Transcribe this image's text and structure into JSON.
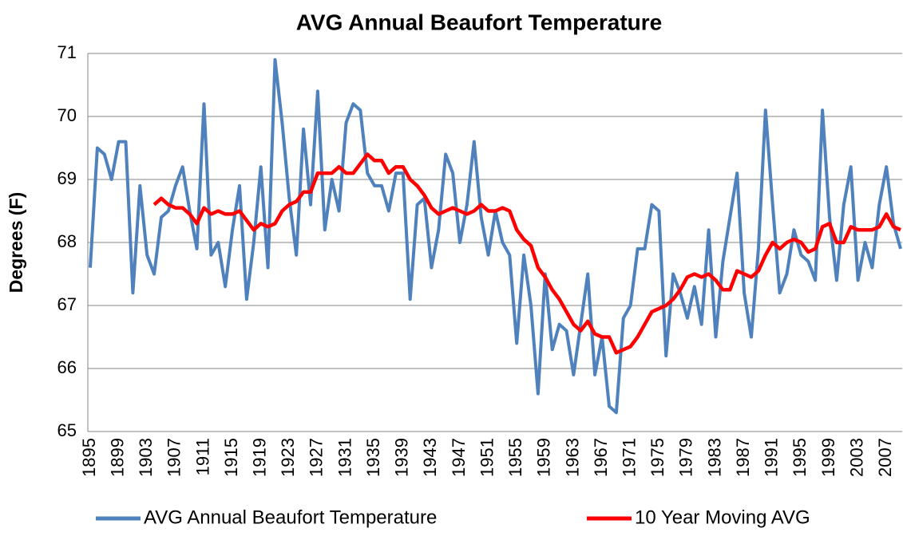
{
  "chart_data": {
    "type": "line",
    "title": "AVG Annual Beaufort Temperature",
    "y_label": "Degrees (F)",
    "categories": [
      "1895",
      null,
      null,
      null,
      "1899",
      null,
      null,
      null,
      "1903",
      null,
      null,
      null,
      "1907",
      null,
      null,
      null,
      "1911",
      null,
      null,
      null,
      "1915",
      null,
      null,
      null,
      "1919",
      null,
      null,
      null,
      "1923",
      null,
      null,
      null,
      "1927",
      null,
      null,
      null,
      "1931",
      null,
      null,
      null,
      "1935",
      null,
      null,
      null,
      "1939",
      null,
      null,
      null,
      "1943",
      null,
      null,
      null,
      "1947",
      null,
      null,
      null,
      "1951",
      null,
      null,
      null,
      "1955",
      null,
      null,
      null,
      "1959",
      null,
      null,
      null,
      "1963",
      null,
      null,
      null,
      "1967",
      null,
      null,
      null,
      "1971",
      null,
      null,
      null,
      "1975",
      null,
      null,
      null,
      "1979",
      null,
      null,
      null,
      "1983",
      null,
      null,
      null,
      "1987",
      null,
      null,
      null,
      "1991",
      null,
      null,
      null,
      "1995",
      null,
      null,
      null,
      "1999",
      null,
      null,
      null,
      "2003",
      null,
      null,
      null,
      "2007",
      null,
      null
    ],
    "series": [
      {
        "name": "AVG Annual Beaufort Temperature",
        "color": "#4f81bd",
        "values": [
          67.6,
          69.5,
          69.4,
          69.0,
          69.6,
          69.6,
          67.2,
          68.9,
          67.8,
          67.5,
          68.4,
          68.5,
          68.9,
          69.2,
          68.5,
          67.9,
          70.2,
          67.8,
          68.0,
          67.3,
          68.2,
          68.9,
          67.1,
          68.0,
          69.2,
          67.6,
          70.9,
          69.9,
          68.7,
          67.8,
          69.8,
          68.6,
          70.4,
          68.2,
          69.0,
          68.5,
          69.9,
          70.2,
          70.1,
          69.1,
          68.9,
          68.9,
          68.5,
          69.1,
          69.1,
          67.1,
          68.6,
          68.7,
          67.6,
          68.2,
          69.4,
          69.1,
          68.0,
          68.6,
          69.6,
          68.4,
          67.8,
          68.5,
          68.0,
          67.8,
          66.4,
          67.8,
          67.0,
          65.6,
          67.5,
          66.3,
          66.7,
          66.6,
          65.9,
          66.7,
          67.5,
          65.9,
          66.5,
          65.4,
          65.3,
          66.8,
          67.0,
          67.9,
          67.9,
          68.6,
          68.5,
          66.2,
          67.5,
          67.2,
          66.8,
          67.3,
          66.7,
          68.2,
          66.5,
          67.7,
          68.4,
          69.1,
          67.2,
          66.5,
          67.9,
          70.1,
          68.6,
          67.2,
          67.5,
          68.2,
          67.8,
          67.7,
          67.4,
          70.1,
          68.4,
          67.4,
          68.6,
          69.2,
          67.4,
          68.0,
          67.6,
          68.6,
          69.2,
          68.3,
          67.9
        ]
      },
      {
        "name": "10 Year Moving AVG",
        "color": "#ff0000",
        "values": [
          null,
          null,
          null,
          null,
          null,
          null,
          null,
          null,
          null,
          68.6,
          68.7,
          68.6,
          68.55,
          68.55,
          68.45,
          68.3,
          68.55,
          68.45,
          68.5,
          68.45,
          68.45,
          68.5,
          68.35,
          68.2,
          68.3,
          68.25,
          68.3,
          68.5,
          68.6,
          68.65,
          68.8,
          68.8,
          69.1,
          69.1,
          69.1,
          69.2,
          69.1,
          69.1,
          69.25,
          69.4,
          69.3,
          69.3,
          69.1,
          69.2,
          69.2,
          69.0,
          68.9,
          68.75,
          68.55,
          68.45,
          68.5,
          68.55,
          68.5,
          68.45,
          68.5,
          68.6,
          68.5,
          68.5,
          68.55,
          68.5,
          68.2,
          68.05,
          67.95,
          67.6,
          67.45,
          67.25,
          67.1,
          66.9,
          66.7,
          66.6,
          66.75,
          66.55,
          66.5,
          66.5,
          66.25,
          66.3,
          66.35,
          66.5,
          66.7,
          66.9,
          66.95,
          67.0,
          67.1,
          67.25,
          67.45,
          67.5,
          67.45,
          67.5,
          67.4,
          67.25,
          67.25,
          67.55,
          67.5,
          67.45,
          67.55,
          67.8,
          68.0,
          67.9,
          68.0,
          68.05,
          68.0,
          67.85,
          67.9,
          68.25,
          68.3,
          68.0,
          68.0,
          68.25,
          68.2,
          68.2,
          68.2,
          68.25,
          68.45,
          68.25,
          68.2
        ]
      }
    ],
    "ylim": [
      65,
      71
    ],
    "yticks": [
      65,
      66,
      67,
      68,
      69,
      70,
      71
    ],
    "grid": true,
    "legend": "bottom"
  }
}
